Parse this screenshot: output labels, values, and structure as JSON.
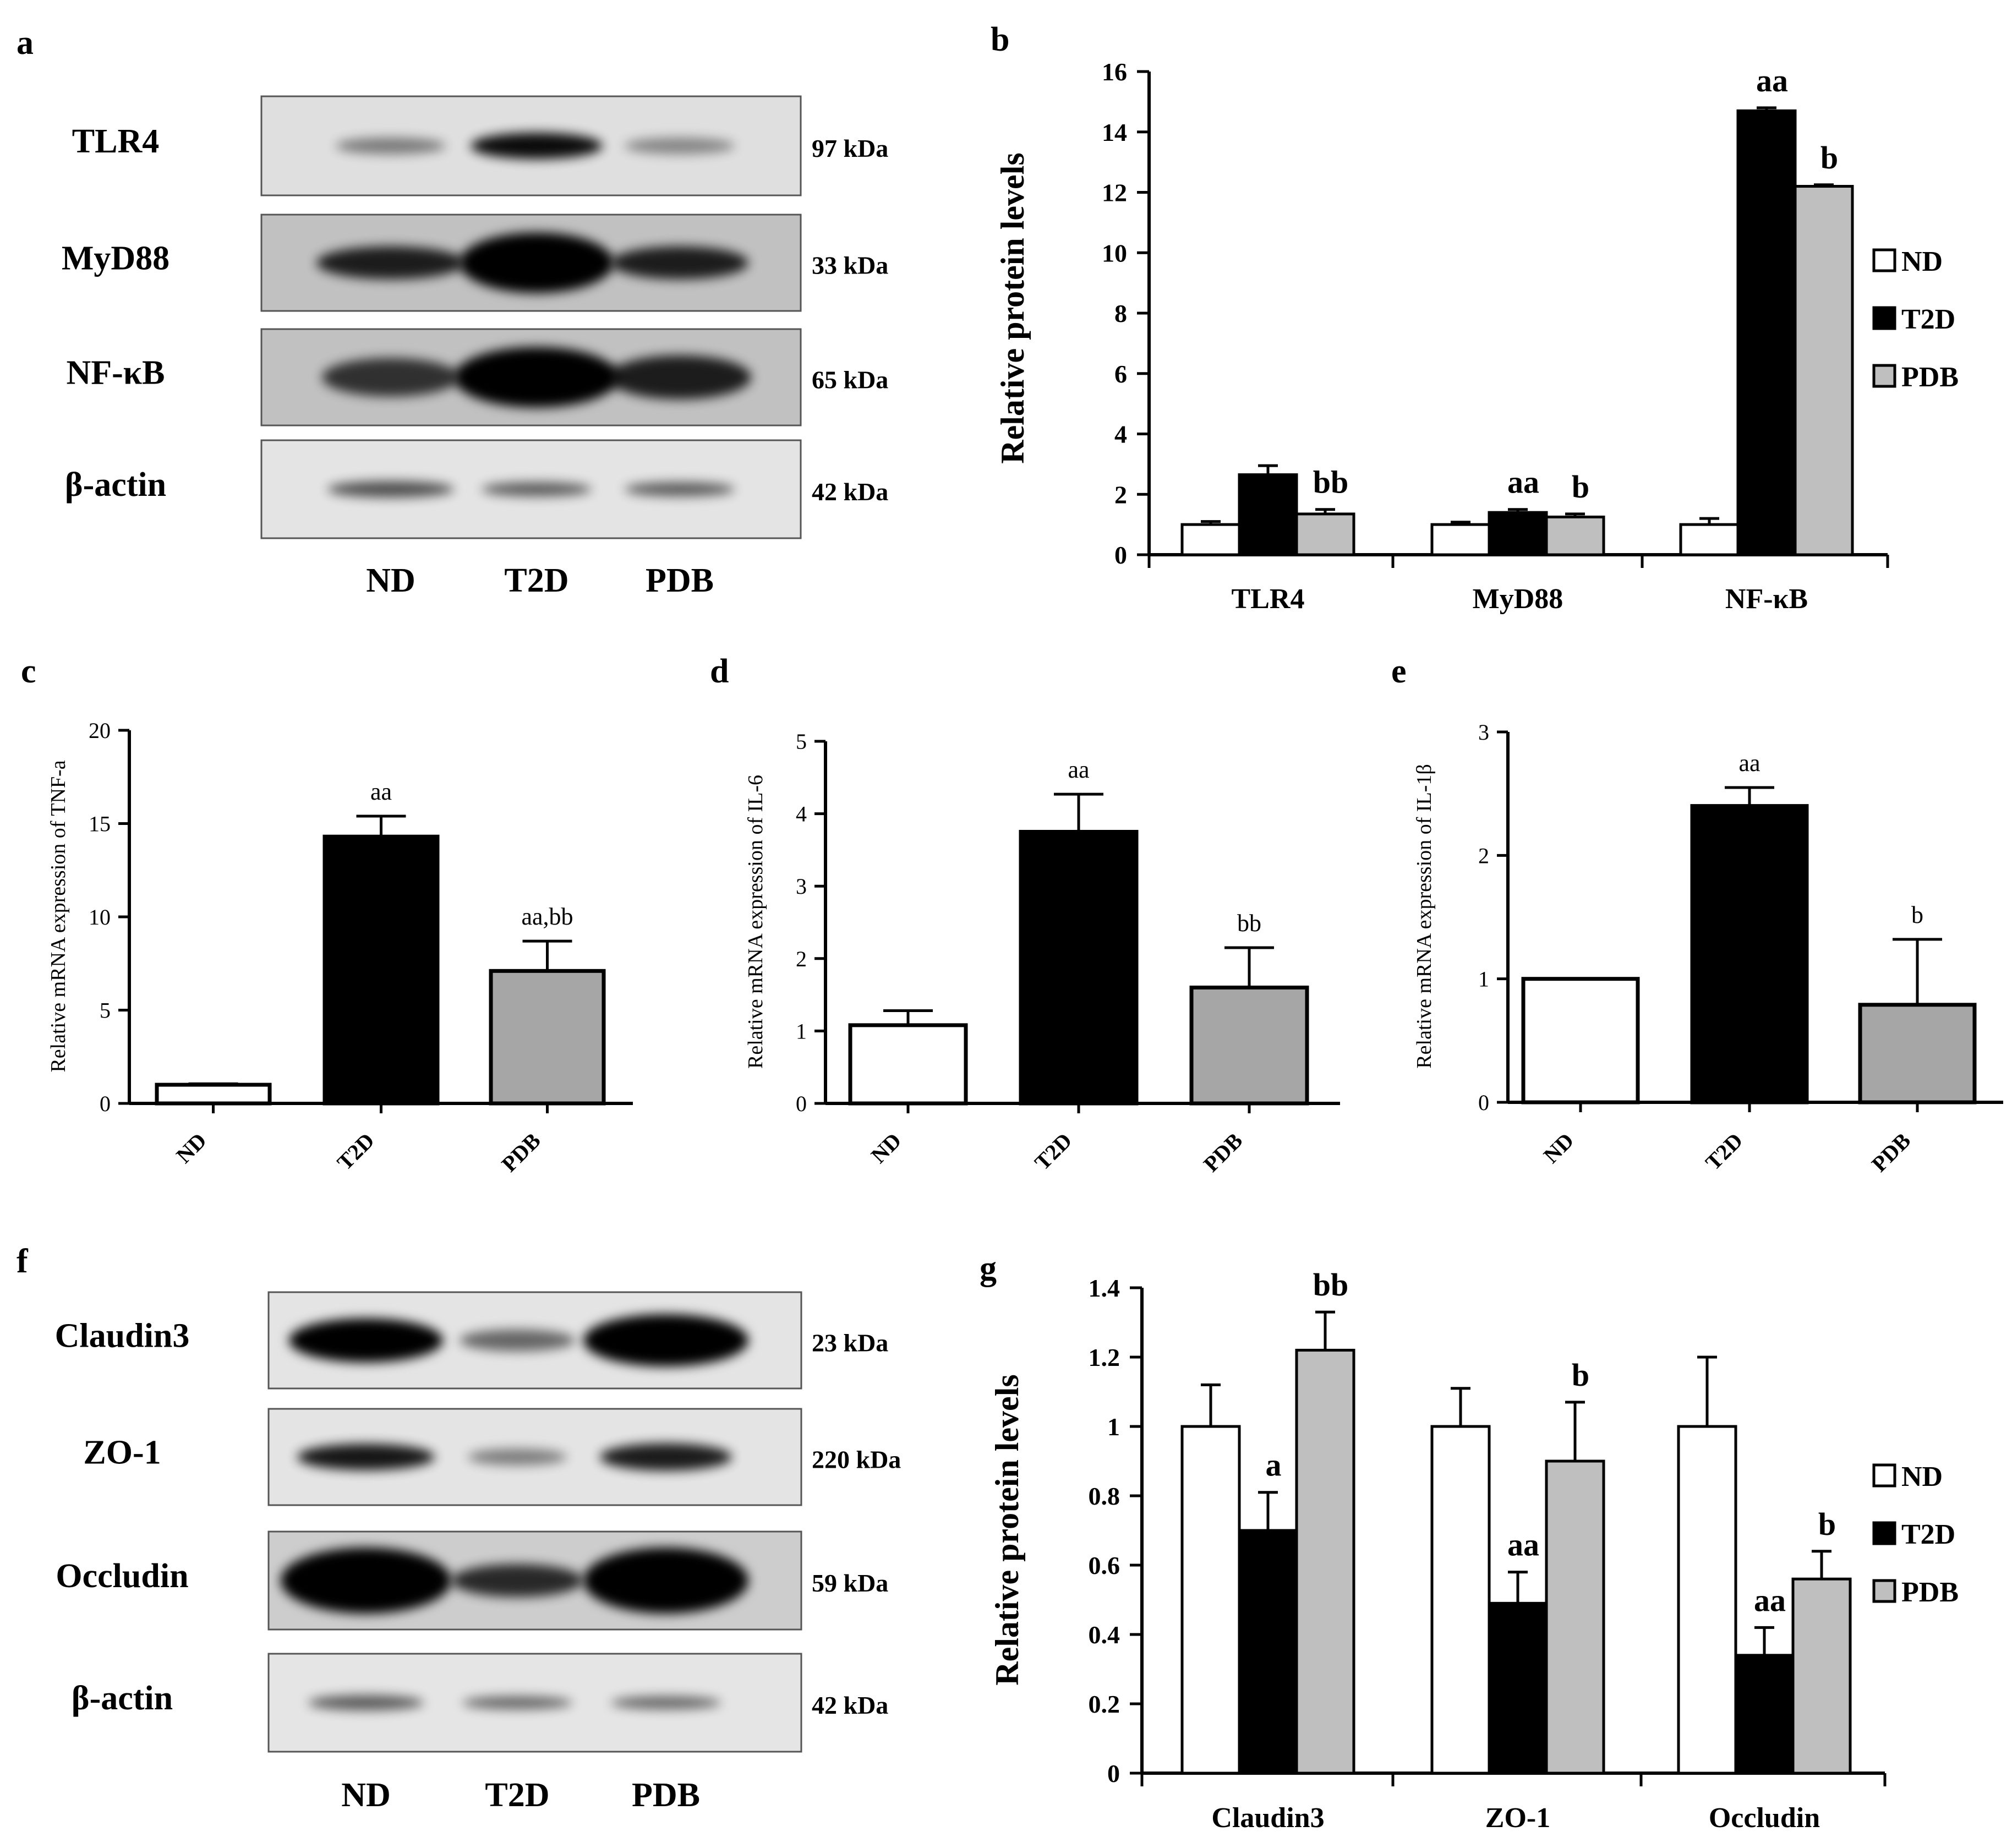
{
  "colors": {
    "nd": "#ffffff",
    "t2d": "#000000",
    "pdb": "#bfbfbf",
    "pdb_small": "#a6a6a6",
    "blot_bg": "#e6e6e6"
  },
  "blots": [
    {
      "letter": "a",
      "lanes": [
        "ND",
        "T2D",
        "PDB"
      ],
      "rows": [
        {
          "label": "TLR4",
          "kda": "97 kDa"
        },
        {
          "label": "MyD88",
          "kda": "33 kDa"
        },
        {
          "label": "NF-κB",
          "kda": "65 kDa"
        },
        {
          "label": "β-actin",
          "kda": "42 kDa"
        }
      ]
    },
    {
      "letter": "f",
      "lanes": [
        "ND",
        "T2D",
        "PDB"
      ],
      "rows": [
        {
          "label": "Claudin3",
          "kda": "23 kDa"
        },
        {
          "label": "ZO-1",
          "kda": "220 kDa"
        },
        {
          "label": "Occludin",
          "kda": "59 kDa"
        },
        {
          "label": "β-actin",
          "kda": "42 kDa"
        }
      ]
    }
  ],
  "chart_data": [
    {
      "id": "b",
      "letter": "b",
      "type": "bar",
      "ylabel": "Relative protein levels",
      "ylim": [
        0,
        16
      ],
      "yticks": [
        "0",
        "2",
        "4",
        "6",
        "8",
        "10",
        "12",
        "14",
        "16"
      ],
      "categories": [
        "TLR4",
        "MyD88",
        "NF-κB"
      ],
      "legend": [
        "ND",
        "T2D",
        "PDB"
      ],
      "series": [
        {
          "name": "ND",
          "values": [
            1.0,
            1.0,
            1.0
          ],
          "errors": [
            0.1,
            0.08,
            0.2
          ]
        },
        {
          "name": "T2D",
          "values": [
            2.65,
            1.4,
            14.7
          ],
          "errors": [
            0.3,
            0.1,
            0.1
          ]
        },
        {
          "name": "PDB",
          "values": [
            1.35,
            1.25,
            12.2
          ],
          "errors": [
            0.15,
            0.1,
            0.05
          ]
        }
      ],
      "annotations": [
        [
          "",
          "aa",
          "aa"
        ],
        [
          "bb",
          "b",
          "b"
        ]
      ]
    },
    {
      "id": "c",
      "letter": "c",
      "type": "bar",
      "ylabel": "Relative mRNA expression of TNF-a",
      "ylim": [
        0,
        20
      ],
      "yticks": [
        "0",
        "5",
        "10",
        "15",
        "20"
      ],
      "categories": [
        "ND",
        "T2D",
        "PDB"
      ],
      "values": [
        1.0,
        14.3,
        7.1
      ],
      "errors": [
        0.05,
        1.1,
        1.6
      ],
      "annotations": [
        "",
        "aa",
        "aa,bb"
      ]
    },
    {
      "id": "d",
      "letter": "d",
      "type": "bar",
      "ylabel": "Relative mRNA expression of IL-6",
      "ylim": [
        0,
        5
      ],
      "yticks": [
        "0",
        "1",
        "2",
        "3",
        "4",
        "5"
      ],
      "categories": [
        "ND",
        "T2D",
        "PDB"
      ],
      "values": [
        1.08,
        3.75,
        1.6
      ],
      "errors": [
        0.2,
        0.52,
        0.55
      ],
      "annotations": [
        "",
        "aa",
        "bb"
      ]
    },
    {
      "id": "e",
      "letter": "e",
      "type": "bar",
      "ylabel": "Relative mRNA expression of IL-1β",
      "ylim": [
        0,
        3
      ],
      "yticks": [
        "0",
        "1",
        "2",
        "3"
      ],
      "categories": [
        "ND",
        "T2D",
        "PDB"
      ],
      "values": [
        1.0,
        2.4,
        0.79
      ],
      "errors": [
        0.0,
        0.15,
        0.53
      ],
      "annotations": [
        "",
        "aa",
        "b"
      ]
    },
    {
      "id": "g",
      "letter": "g",
      "type": "bar",
      "ylabel": "Relative protein levels",
      "ylim": [
        0,
        1.4
      ],
      "yticks": [
        "0",
        "0.2",
        "0.4",
        "0.6",
        "0.8",
        "1",
        "1.2",
        "1.4"
      ],
      "categories": [
        "Claudin3",
        "ZO-1",
        "Occludin"
      ],
      "legend": [
        "ND",
        "T2D",
        "PDB"
      ],
      "series": [
        {
          "name": "ND",
          "values": [
            1.0,
            1.0,
            1.0
          ],
          "errors": [
            0.12,
            0.11,
            0.2
          ]
        },
        {
          "name": "T2D",
          "values": [
            0.7,
            0.49,
            0.34
          ],
          "errors": [
            0.11,
            0.09,
            0.08
          ]
        },
        {
          "name": "PDB",
          "values": [
            1.22,
            0.9,
            0.56
          ],
          "errors": [
            0.11,
            0.17,
            0.08
          ]
        }
      ],
      "annotations": [
        [
          "a",
          "aa",
          "aa"
        ],
        [
          "bb",
          "b",
          "b"
        ]
      ]
    }
  ]
}
